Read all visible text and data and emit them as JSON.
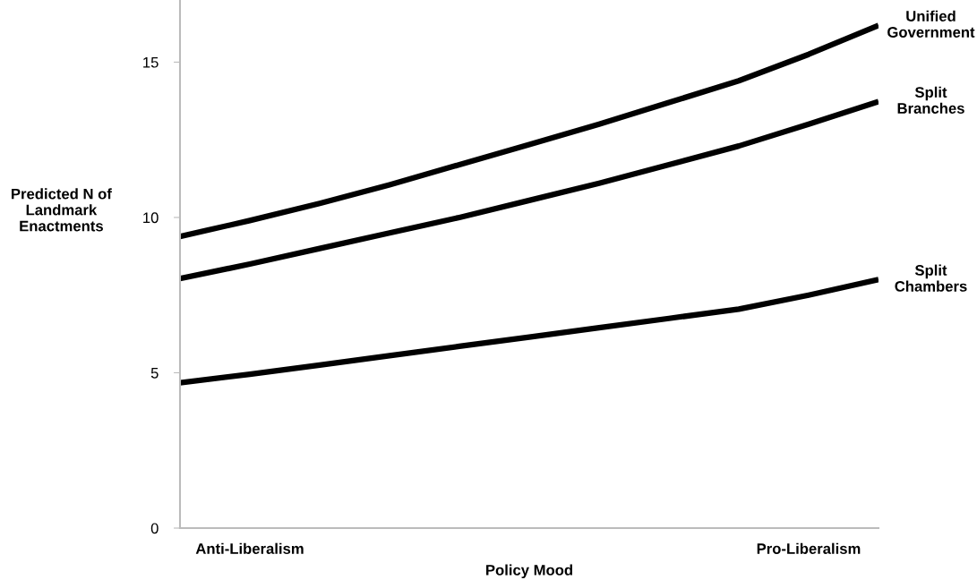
{
  "chart_data": {
    "type": "line",
    "xlabel": "Policy Mood",
    "ylabel": "Predicted N of\nLandmark\nEnactments",
    "categories": [
      null,
      "Anti-Liberalism",
      null,
      null,
      null,
      null,
      null,
      null,
      null,
      "Pro-Liberalism",
      null
    ],
    "ylim": [
      0,
      17
    ],
    "yticks": [
      0,
      5,
      10,
      15
    ],
    "grid": false,
    "legend": false,
    "marker": "none",
    "line_style": "solid",
    "series": [
      {
        "name": "Unified\nGovernment",
        "color": "#000000",
        "values": [
          9.39,
          9.9,
          10.45,
          11.05,
          11.7,
          12.35,
          13.0,
          13.7,
          14.4,
          15.25,
          16.18
        ]
      },
      {
        "name": "Split\nBranches",
        "color": "#000000",
        "values": [
          8.03,
          8.5,
          9.0,
          9.5,
          10.0,
          10.55,
          11.1,
          11.7,
          12.3,
          13.0,
          13.73
        ]
      },
      {
        "name": "Split\nChambers",
        "color": "#000000",
        "values": [
          4.68,
          4.95,
          5.25,
          5.55,
          5.85,
          6.15,
          6.45,
          6.75,
          7.05,
          7.5,
          8.0
        ]
      }
    ]
  }
}
